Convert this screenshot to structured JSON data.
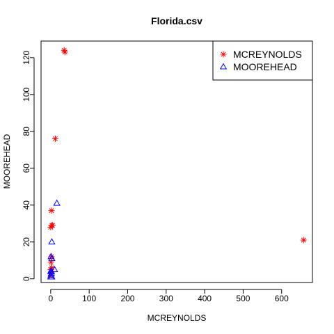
{
  "chart_data": {
    "type": "scatter",
    "title": "Florida.csv",
    "xlabel": "MCREYNOLDS",
    "ylabel": "MOOREHEAD",
    "xlim": [
      -25,
      680
    ],
    "ylim": [
      -2,
      129
    ],
    "xticks": [
      0,
      100,
      200,
      300,
      400,
      500,
      600
    ],
    "yticks": [
      0,
      20,
      40,
      60,
      80,
      100,
      120
    ],
    "grid": false,
    "legend_position": "top-right",
    "series": [
      {
        "name": "MCREYNOLDS",
        "marker": "asterisk",
        "color": "#ff0000",
        "points": [
          [
            35,
            124
          ],
          [
            37,
            123
          ],
          [
            12,
            76
          ],
          [
            657,
            21
          ],
          [
            2,
            37
          ],
          [
            0,
            28
          ],
          [
            3,
            29
          ],
          [
            5,
            29
          ],
          [
            2,
            12
          ],
          [
            1,
            9
          ],
          [
            3,
            6
          ],
          [
            0,
            5
          ],
          [
            2,
            4
          ],
          [
            0,
            3
          ],
          [
            1,
            2
          ]
        ]
      },
      {
        "name": "MOOREHEAD",
        "marker": "triangle",
        "color": "#0000ff",
        "points": [
          [
            16,
            41
          ],
          [
            3,
            20
          ],
          [
            1,
            12
          ],
          [
            3,
            11
          ],
          [
            10,
            5
          ],
          [
            0,
            4
          ],
          [
            2,
            3
          ],
          [
            1,
            2
          ],
          [
            0,
            1
          ],
          [
            3,
            1
          ],
          [
            2,
            4
          ]
        ]
      }
    ]
  }
}
